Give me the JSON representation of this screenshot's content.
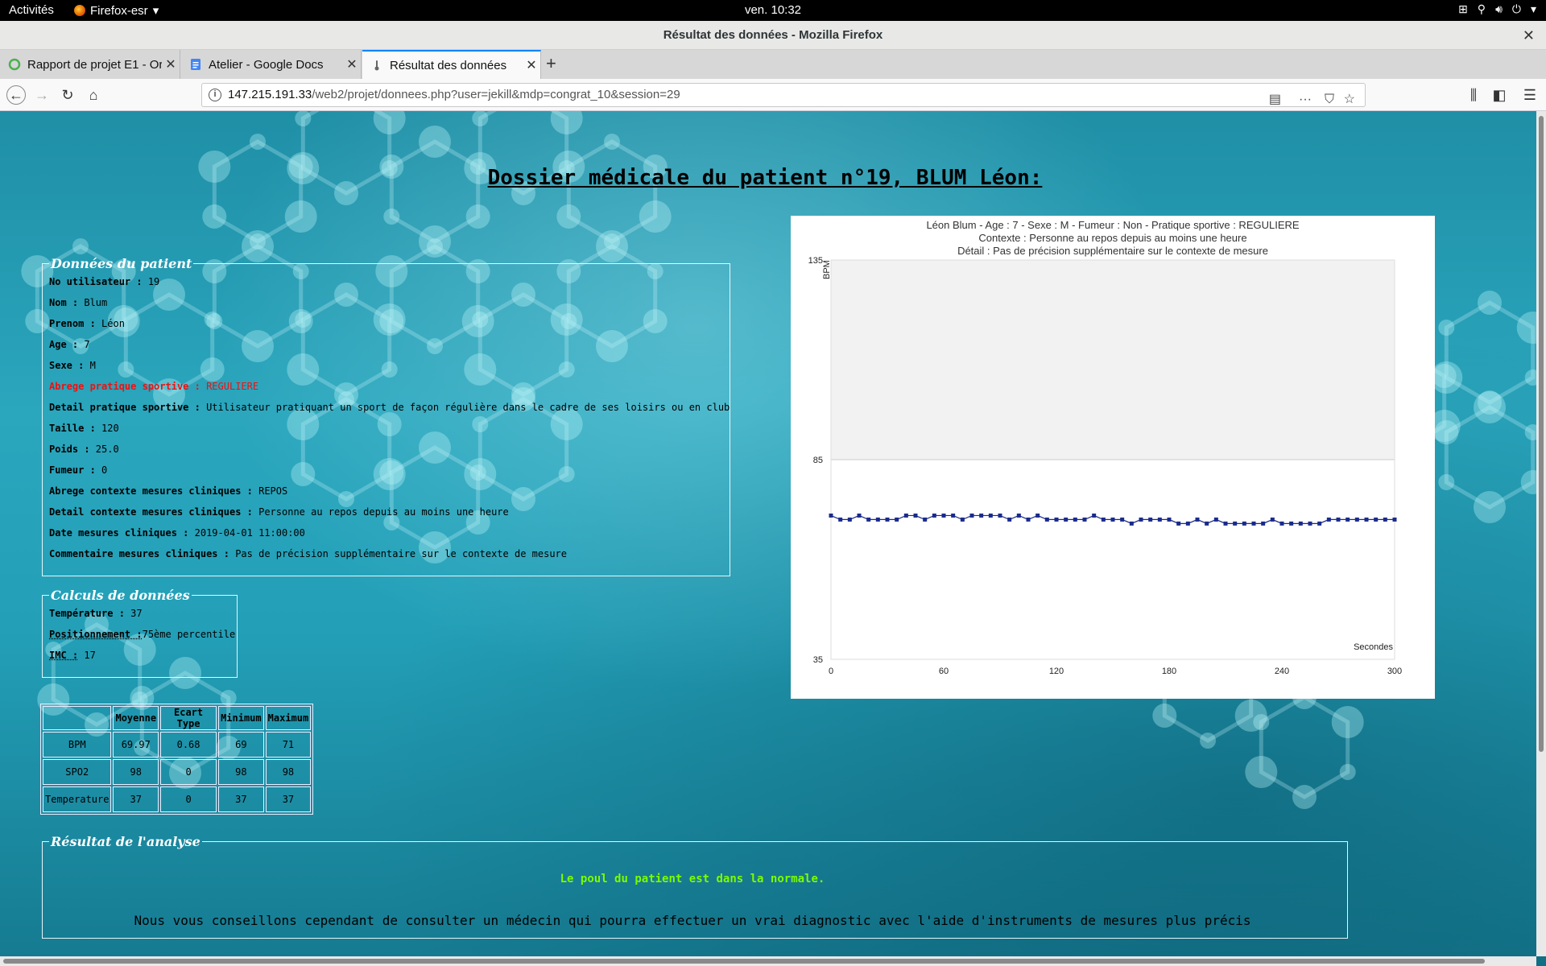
{
  "os": {
    "activities": "Activités",
    "app": "Firefox-esr",
    "clock": "ven. 10:32"
  },
  "window": {
    "title": "Résultat des données - Mozilla Firefox"
  },
  "tabs": [
    {
      "label": "Rapport de projet E1 - Or"
    },
    {
      "label": "Atelier - Google Docs"
    },
    {
      "label": "Résultat des données"
    }
  ],
  "url": {
    "host": "147.215.191.33",
    "path": "/web2/projet/donnees.php?user=jekill&mdp=congrat_10&session=29"
  },
  "page": {
    "title": "Dossier médicale du patient n°19, BLUM Léon:"
  },
  "patient": {
    "legend": "Données du patient",
    "fields": [
      {
        "label": "No utilisateur :",
        "value": " 19"
      },
      {
        "label": "Nom :",
        "value": " Blum"
      },
      {
        "label": "Prenom :",
        "value": " Léon"
      },
      {
        "label": "Age :",
        "value": " 7"
      },
      {
        "label": "Sexe :",
        "value": " M"
      },
      {
        "label": "Abrege pratique sportive :",
        "value": " REGULIERE"
      },
      {
        "label": "Detail pratique sportive :",
        "value": " Utilisateur pratiquant un sport de façon régulière dans le cadre de ses loisirs ou en club"
      },
      {
        "label": "Taille :",
        "value": " 120"
      },
      {
        "label": "Poids :",
        "value": " 25.0"
      },
      {
        "label": "Fumeur :",
        "value": " 0"
      },
      {
        "label": "Abrege contexte mesures cliniques :",
        "value": " REPOS"
      },
      {
        "label": "Detail contexte mesures cliniques :",
        "value": " Personne au repos depuis au moins une heure"
      },
      {
        "label": "Date mesures cliniques :",
        "value": " 2019-04-01 11:00:00"
      },
      {
        "label": "Commentaire mesures cliniques :",
        "value": " Pas de précision supplémentaire sur le contexte de mesure"
      }
    ]
  },
  "calculs": {
    "legend": "Calculs de données",
    "fields": [
      {
        "label": "Température :",
        "value": " 37"
      },
      {
        "label": "Positionnement :",
        "value": "75ème percentile"
      },
      {
        "label": "IMC :",
        "value": " 17"
      }
    ]
  },
  "stats": {
    "headers": [
      "",
      "Moyenne",
      "Ecart Type",
      "Minimum",
      "Maximum"
    ],
    "rows": [
      [
        "BPM",
        "69.97",
        "0.68",
        "69",
        "71"
      ],
      [
        "SPO2",
        "98",
        "0",
        "98",
        "98"
      ],
      [
        "Temperature",
        "37",
        "0",
        "37",
        "37"
      ]
    ]
  },
  "analyse": {
    "legend": "Résultat de l'analyse",
    "note": "Le poul du patient est dans la normale.",
    "advice": "Nous vous conseillons cependant de consulter un médecin qui pourra effectuer un vrai diagnostic avec l'aide d'instruments de mesures plus précis"
  },
  "colors": {
    "series": "#1a2a8a",
    "band": "#f2f2f2",
    "warning": "#ee1111",
    "ok": "#7cfc00"
  },
  "chart_data": {
    "type": "line",
    "title": [
      "Léon Blum - Age : 7 - Sexe : M - Fumeur : Non - Pratique sportive : REGULIERE",
      "Contexte : Personne au repos depuis au moins une heure",
      "Détail : Pas de précision supplémentaire sur le contexte de mesure"
    ],
    "xlabel": "Secondes",
    "ylabel": "BPM",
    "xlim": [
      0,
      300
    ],
    "ylim": [
      35,
      135
    ],
    "xticks": [
      0,
      60,
      120,
      180,
      240,
      300
    ],
    "yticks": [
      35,
      85,
      135
    ],
    "band": [
      85,
      135
    ],
    "series": [
      {
        "name": "BPM",
        "x": [
          0,
          5,
          10,
          15,
          20,
          25,
          30,
          35,
          40,
          45,
          50,
          55,
          60,
          65,
          70,
          75,
          80,
          85,
          90,
          95,
          100,
          105,
          110,
          115,
          120,
          125,
          130,
          135,
          140,
          145,
          150,
          155,
          160,
          165,
          170,
          175,
          180,
          185,
          190,
          195,
          200,
          205,
          210,
          215,
          220,
          225,
          230,
          235,
          240,
          245,
          250,
          255,
          260,
          265,
          270,
          275,
          280,
          285,
          290,
          295,
          300
        ],
        "values": [
          71,
          70,
          70,
          71,
          70,
          70,
          70,
          70,
          71,
          71,
          70,
          71,
          71,
          71,
          70,
          71,
          71,
          71,
          71,
          70,
          71,
          70,
          71,
          70,
          70,
          70,
          70,
          70,
          71,
          70,
          70,
          70,
          69,
          70,
          70,
          70,
          70,
          69,
          69,
          70,
          69,
          70,
          69,
          69,
          69,
          69,
          69,
          70,
          69,
          69,
          69,
          69,
          69,
          70,
          70,
          70,
          70,
          70,
          70,
          70,
          70
        ]
      }
    ]
  }
}
